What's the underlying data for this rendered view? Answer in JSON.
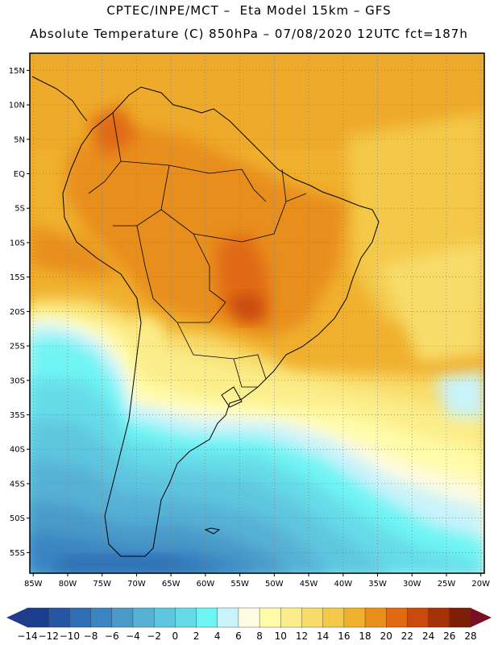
{
  "header": {
    "line1": "CPTEC/INPE/MCT –  Eta Model 15km – GFS",
    "line2": "Absolute Temperature (C) 850hPa – 07/08/2020 12UTC fct=187h"
  },
  "map": {
    "lat_labels": [
      "15N",
      "10N",
      "5N",
      "EQ",
      "5S",
      "10S",
      "15S",
      "20S",
      "25S",
      "30S",
      "35S",
      "40S",
      "45S",
      "50S",
      "55S"
    ],
    "lon_labels": [
      "85W",
      "80W",
      "75W",
      "70W",
      "65W",
      "60W",
      "55W",
      "50W",
      "45W",
      "40W",
      "35W",
      "30W",
      "25W",
      "20W"
    ],
    "lat_range": [
      17.5,
      -58.0
    ],
    "lon_range": [
      -85.5,
      -19.5
    ]
  },
  "legend": {
    "labels": [
      "-14",
      "-12",
      "-10",
      "-8",
      "-6",
      "-4",
      "-2",
      "0",
      "2",
      "4",
      "6",
      "8",
      "10",
      "12",
      "14",
      "16",
      "18",
      "20",
      "22",
      "24",
      "26",
      "28"
    ],
    "colors": [
      "#1b3d8f",
      "#2456a2",
      "#2f6eb4",
      "#3b84c2",
      "#4a9ac9",
      "#57b1d5",
      "#5fc6df",
      "#66dbe8",
      "#6ff4f4",
      "#c9f3fb",
      "#fffbe0",
      "#fffba8",
      "#fbed8a",
      "#f8dc6a",
      "#f4c94a",
      "#f0b02e",
      "#e88e1c",
      "#e06912",
      "#c94a0c",
      "#a63208",
      "#7c1f06"
    ],
    "underflow_color": "#213c8a",
    "overflow_color": "#7a0e24"
  }
}
